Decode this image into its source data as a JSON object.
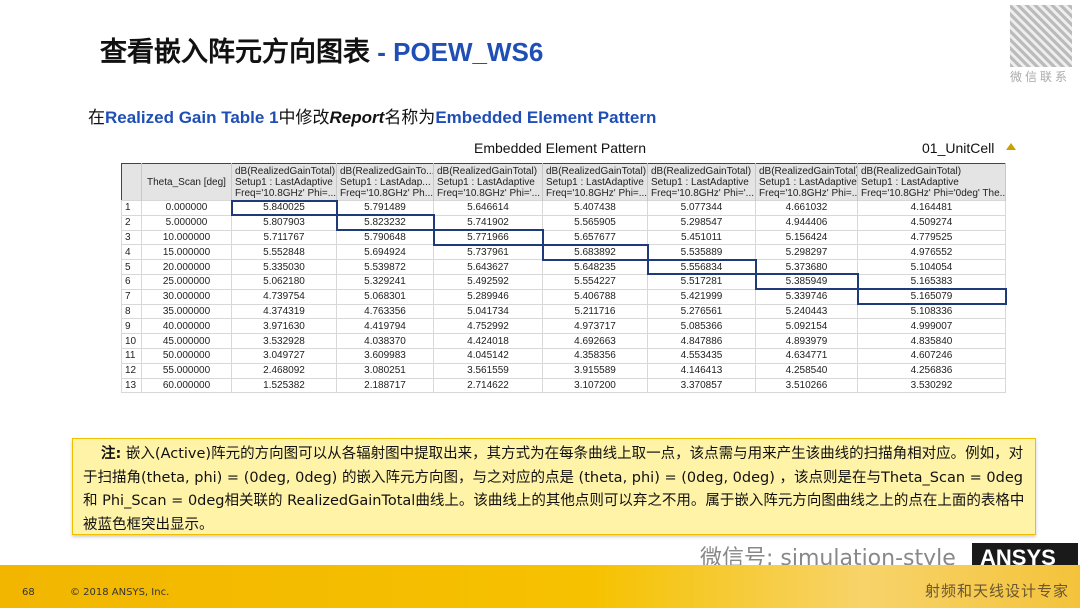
{
  "title": {
    "main": "查看嵌入阵元方向图表",
    "sep": " - ",
    "sub": "POEW_WS6"
  },
  "qr": {
    "label": "微信联系"
  },
  "subtitle": {
    "p1": "在",
    "b1": "Realized Gain Table 1",
    "p2": "中修改",
    "i1": "Report",
    "p3": "名称为",
    "b2": "Embedded Element Pattern"
  },
  "plot": {
    "title": "Embedded Element Pattern",
    "name": "01_UnitCell"
  },
  "table": {
    "headers": [
      "",
      "Theta_Scan [deg]",
      [
        "dB(RealizedGainTotal)",
        "Setup1 : LastAdaptive",
        "Freq='10.8GHz' Phi=..."
      ],
      [
        "dB(RealizedGainTo...",
        "Setup1 : LastAdap...",
        "Freq='10.8GHz' Ph..."
      ],
      [
        "dB(RealizedGainTotal)",
        "Setup1 : LastAdaptive",
        "Freq='10.8GHz' Phi='..."
      ],
      [
        "dB(RealizedGainTotal)",
        "Setup1 : LastAdaptive",
        "Freq='10.8GHz' Phi=..."
      ],
      [
        "dB(RealizedGainTotal)",
        "Setup1 : LastAdaptive",
        "Freq='10.8GHz' Phi='..."
      ],
      [
        "dB(RealizedGainTotal)",
        "Setup1 : LastAdaptive",
        "Freq='10.8GHz' Phi=..."
      ],
      [
        "dB(RealizedGainTotal)",
        "Setup1 : LastAdaptive",
        "Freq='10.8GHz' Phi='0deg' The..."
      ]
    ],
    "rows": [
      [
        "1",
        "0.000000",
        "5.840025",
        "5.791489",
        "5.646614",
        "5.407438",
        "5.077344",
        "4.661032",
        "4.164481"
      ],
      [
        "2",
        "5.000000",
        "5.807903",
        "5.823232",
        "5.741902",
        "5.565905",
        "5.298547",
        "4.944406",
        "4.509274"
      ],
      [
        "3",
        "10.000000",
        "5.711767",
        "5.790648",
        "5.771966",
        "5.657677",
        "5.451011",
        "5.156424",
        "4.779525"
      ],
      [
        "4",
        "15.000000",
        "5.552848",
        "5.694924",
        "5.737961",
        "5.683892",
        "5.535889",
        "5.298297",
        "4.976552"
      ],
      [
        "5",
        "20.000000",
        "5.335030",
        "5.539872",
        "5.643627",
        "5.648235",
        "5.556834",
        "5.373680",
        "5.104054"
      ],
      [
        "6",
        "25.000000",
        "5.062180",
        "5.329241",
        "5.492592",
        "5.554227",
        "5.517281",
        "5.385949",
        "5.165383"
      ],
      [
        "7",
        "30.000000",
        "4.739754",
        "5.068301",
        "5.289946",
        "5.406788",
        "5.421999",
        "5.339746",
        "5.165079"
      ],
      [
        "8",
        "35.000000",
        "4.374319",
        "4.763356",
        "5.041734",
        "5.211716",
        "5.276561",
        "5.240443",
        "5.108336"
      ],
      [
        "9",
        "40.000000",
        "3.971630",
        "4.419794",
        "4.752992",
        "4.973717",
        "5.085366",
        "5.092154",
        "4.999007"
      ],
      [
        "10",
        "45.000000",
        "3.532928",
        "4.038370",
        "4.424018",
        "4.692663",
        "4.847886",
        "4.893979",
        "4.835840"
      ],
      [
        "11",
        "50.000000",
        "3.049727",
        "3.609983",
        "4.045142",
        "4.358356",
        "4.553435",
        "4.634771",
        "4.607246"
      ],
      [
        "12",
        "55.000000",
        "2.468092",
        "3.080251",
        "3.561559",
        "3.915589",
        "4.146413",
        "4.258540",
        "4.256836"
      ],
      [
        "13",
        "60.000000",
        "1.525382",
        "2.188717",
        "2.714622",
        "3.107200",
        "3.370857",
        "3.510266",
        "3.530292"
      ]
    ],
    "highlight_color": "#1e3a78"
  },
  "note": {
    "label": "注:",
    "text": "嵌入(Active)阵元的方向图可以从各辐射图中提取出来，其方式为在每条曲线上取一点，该点需与用来产生该曲线的扫描角相对应。例如，对于扫描角(theta, phi) = (0deg, 0deg) 的嵌入阵元方向图，与之对应的点是  (theta, phi) = (0deg, 0deg) ，该点则是在与Theta_Scan  = 0deg 和 Phi_Scan = 0deg相关联的 RealizedGainTotal曲线上。该曲线上的其他点则可以弃之不用。属于嵌入阵元方向图曲线之上的点在上面的表格中被蓝色框突出显示。"
  },
  "watermark": "微信号: simulation-style",
  "logo": "ANSYS",
  "footer": {
    "page": "68",
    "copyright": "© 2018 ANSYS, Inc.",
    "brand": "射频和天线设计专家"
  }
}
